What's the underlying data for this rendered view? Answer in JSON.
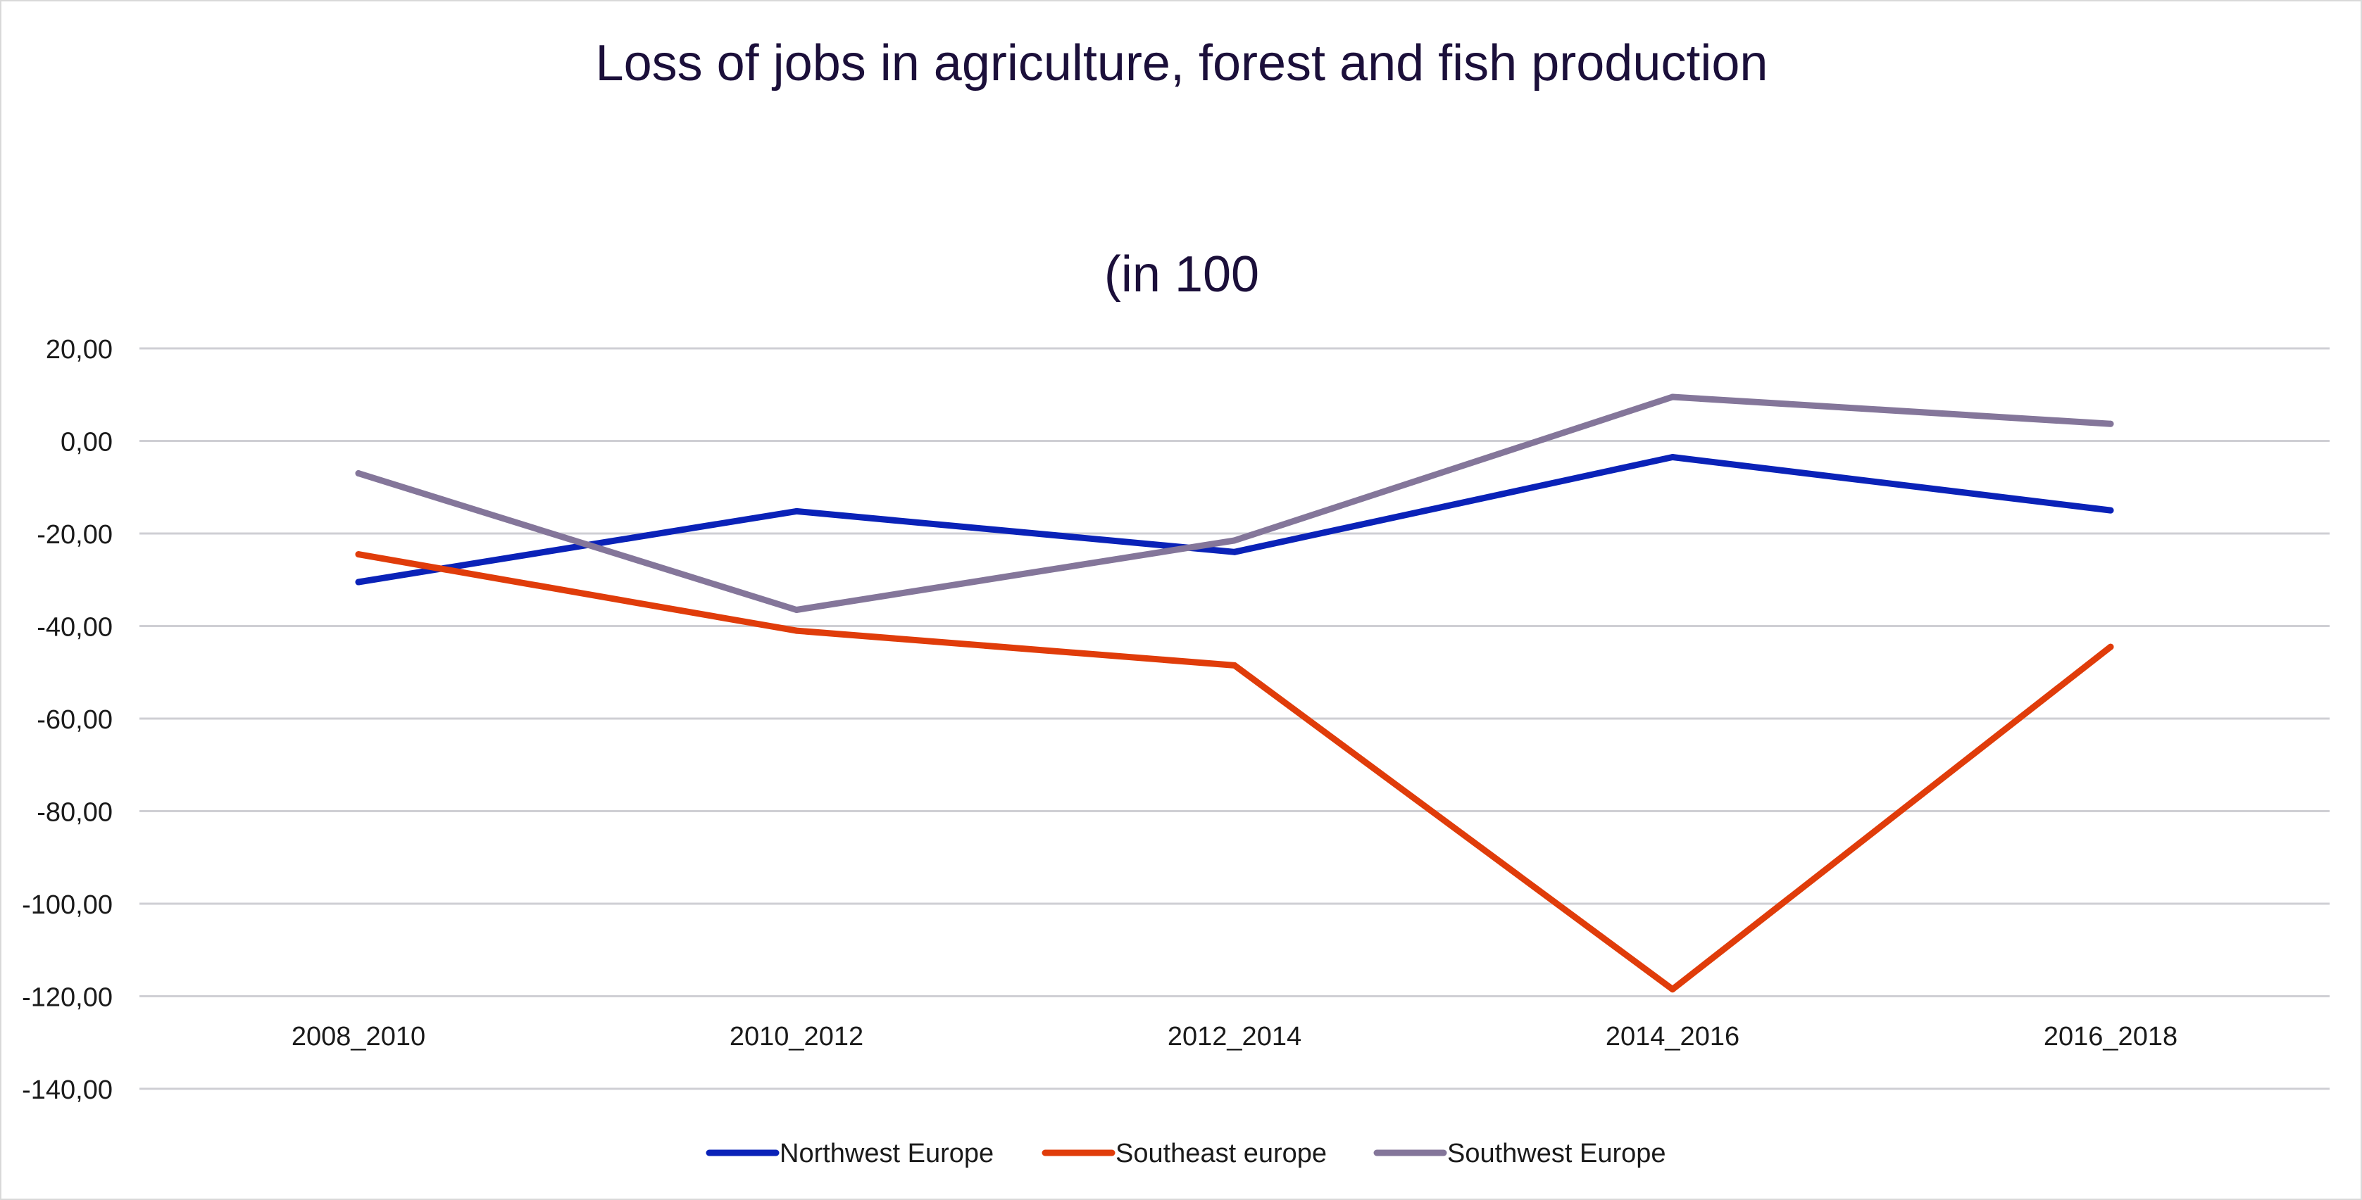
{
  "chart_data": {
    "type": "line",
    "title": "Loss of jobs in agriculture, forest and fish production",
    "subtitle": "(in 100",
    "xlabel": "",
    "ylabel": "",
    "categories": [
      "2008_2010",
      "2010_2012",
      "2012_2014",
      "2014_2016",
      "2016_2018"
    ],
    "ylim": [
      -140,
      20
    ],
    "yticks": [
      20,
      0,
      -20,
      -40,
      -60,
      -80,
      -100,
      -120,
      -140
    ],
    "ytick_labels": [
      "20,00",
      "0,00",
      "-20,00",
      "-40,00",
      "-60,00",
      "-80,00",
      "-100,00",
      "-120,00",
      "-140,00"
    ],
    "grid": true,
    "legend_position": "bottom",
    "series": [
      {
        "name": "Northwest Europe",
        "color": "#0a22b8",
        "values": [
          -30.5,
          -15.2,
          -24.0,
          -3.5,
          -15.0
        ]
      },
      {
        "name": "Southeast europe",
        "color": "#e03c0a",
        "values": [
          -24.5,
          -41.0,
          -48.5,
          -118.5,
          -44.5
        ]
      },
      {
        "name": "Southwest Europe",
        "color": "#84769a",
        "values": [
          -7.0,
          -36.5,
          -21.5,
          9.5,
          3.7
        ]
      }
    ]
  }
}
